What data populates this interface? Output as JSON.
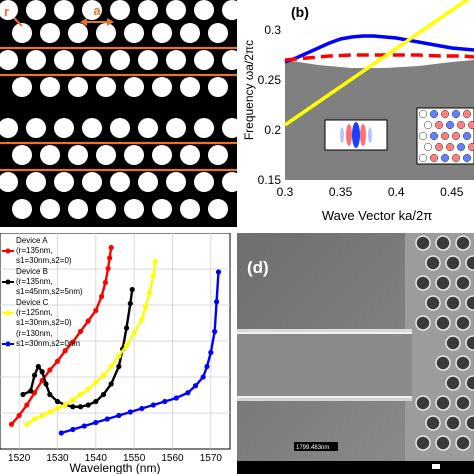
{
  "panel_a": {
    "label_r": "r",
    "label_a": "a",
    "colors": {
      "holes": "#ffffff",
      "slab": "#000000",
      "lines": "#e8732a"
    }
  },
  "panel_b": {
    "label": "(b)",
    "xlabel": "Wave Vector ka/2π",
    "ylabel": "Frequency ωa/2πc",
    "xticks": [
      "0.3",
      "0.35",
      "0.4",
      "0.45"
    ],
    "yticks": [
      "0.15",
      "0.2",
      "0.25",
      "0.3"
    ]
  },
  "panel_c": {
    "xlabel": "Wavelength (nm)",
    "xticks": [
      "1520",
      "1530",
      "1540",
      "1550",
      "1560",
      "1570"
    ],
    "legend": [
      {
        "title": "Device A",
        "params": "(r=135nm,",
        "params2": "s1=30nm,s2=0)",
        "color": "#ff0000"
      },
      {
        "title": "Device B",
        "params": "(r=135nm,",
        "params2": "s1=45nm,s2=5nm)",
        "color": "#000000"
      },
      {
        "title": "Device C",
        "params": "(r=125nm,",
        "params2": "s1=30nm,s2=0)",
        "color": "#ffff00"
      },
      {
        "title": "",
        "params": "(r=130nm,",
        "params2": "s1=30nm,s2=0nm",
        "color": "#0000ff"
      }
    ]
  },
  "panel_d": {
    "label": "(d)",
    "scalebar_text": "1799.483nm"
  },
  "chart_data": [
    {
      "type": "line",
      "title": "",
      "xlabel": "Wave Vector ka/2π",
      "ylabel": "Frequency ωa/2πc",
      "xlim": [
        0.3,
        0.47
      ],
      "ylim": [
        0.15,
        0.33
      ],
      "series": [
        {
          "color": "#0000ff",
          "x": [
            0.3,
            0.31,
            0.32,
            0.33,
            0.34,
            0.35,
            0.36,
            0.37,
            0.38,
            0.39,
            0.4,
            0.41,
            0.42,
            0.43,
            0.44,
            0.45,
            0.46,
            0.47
          ],
          "y": [
            0.268,
            0.272,
            0.277,
            0.282,
            0.287,
            0.291,
            0.293,
            0.294,
            0.294,
            0.293,
            0.292,
            0.29,
            0.288,
            0.286,
            0.284,
            0.282,
            0.281,
            0.28
          ]
        },
        {
          "color": "#ff0000",
          "style": "dashed",
          "x": [
            0.3,
            0.32,
            0.34,
            0.36,
            0.38,
            0.4,
            0.42,
            0.44,
            0.46,
            0.47
          ],
          "y": [
            0.27,
            0.272,
            0.274,
            0.275,
            0.275,
            0.275,
            0.275,
            0.274,
            0.274,
            0.273
          ]
        },
        {
          "color": "#ffff00",
          "x": [
            0.3,
            0.47
          ],
          "y": [
            0.205,
            0.335
          ]
        },
        {
          "color": "#ffffff",
          "role": "light-cone-upper",
          "x": [
            0.3,
            0.33,
            0.36,
            0.39,
            0.42,
            0.45,
            0.47
          ],
          "y": [
            0.3,
            0.31,
            0.318,
            0.324,
            0.328,
            0.331,
            0.333
          ]
        },
        {
          "color": "#ffffff",
          "role": "light-cone-lower",
          "x": [
            0.3,
            0.33,
            0.36,
            0.39,
            0.42,
            0.45,
            0.47
          ],
          "y": [
            0.27,
            0.265,
            0.262,
            0.262,
            0.264,
            0.268,
            0.27
          ]
        }
      ]
    },
    {
      "type": "line",
      "title": "",
      "xlabel": "Wavelength (nm)",
      "ylabel": "",
      "xlim": [
        1515,
        1575
      ],
      "series": [
        {
          "name": "Device A",
          "color": "#ff0000",
          "x": [
            1518,
            1520,
            1522,
            1524,
            1526,
            1528,
            1530,
            1532,
            1534,
            1536,
            1538,
            1540,
            1541.5,
            1542.5,
            1543.2,
            1543.6,
            1544
          ],
          "y": [
            0.05,
            0.1,
            0.16,
            0.23,
            0.3,
            0.36,
            0.41,
            0.47,
            0.52,
            0.58,
            0.64,
            0.7,
            0.78,
            0.86,
            0.94,
            1.0,
            1.06
          ]
        },
        {
          "name": "Device B",
          "color": "#000000",
          "x": [
            1521,
            1523,
            1524,
            1525,
            1526,
            1527,
            1528,
            1530,
            1532,
            1534,
            1536,
            1538,
            1540,
            1542,
            1544,
            1546,
            1547,
            1548,
            1549,
            1549.5
          ],
          "y": [
            0.22,
            0.24,
            0.33,
            0.38,
            0.35,
            0.28,
            0.22,
            0.18,
            0.16,
            0.15,
            0.15,
            0.16,
            0.18,
            0.22,
            0.28,
            0.38,
            0.48,
            0.6,
            0.74,
            0.82
          ]
        },
        {
          "name": "Device C",
          "color": "#ffff00",
          "x": [
            1522,
            1524,
            1526,
            1528,
            1530,
            1532,
            1534,
            1536,
            1538,
            1540,
            1542,
            1544,
            1546,
            1548,
            1550,
            1552,
            1553,
            1554,
            1555,
            1555.5
          ],
          "y": [
            0.05,
            0.08,
            0.1,
            0.12,
            0.14,
            0.16,
            0.19,
            0.22,
            0.25,
            0.29,
            0.33,
            0.38,
            0.44,
            0.5,
            0.57,
            0.65,
            0.72,
            0.8,
            0.9,
            0.98
          ]
        },
        {
          "color": "#0000ff",
          "x": [
            1531,
            1534,
            1537,
            1540,
            1543,
            1546,
            1549,
            1552,
            1555,
            1558,
            1561,
            1564,
            1566,
            1568,
            1569,
            1570,
            1571,
            1571.5,
            1572
          ],
          "y": [
            0.0,
            0.02,
            0.04,
            0.06,
            0.08,
            0.1,
            0.12,
            0.14,
            0.16,
            0.18,
            0.2,
            0.23,
            0.27,
            0.32,
            0.38,
            0.46,
            0.58,
            0.75,
            0.92
          ]
        }
      ]
    }
  ]
}
